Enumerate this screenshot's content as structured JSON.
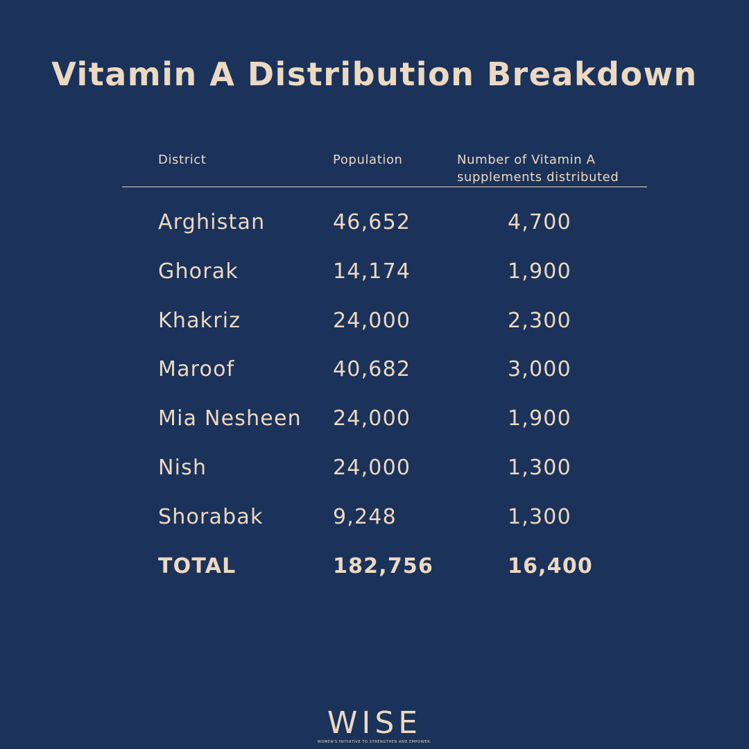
{
  "title": "Vitamin A Distribution Breakdown",
  "table": {
    "headers": {
      "district": "District",
      "population": "Population",
      "supplements_line1": "Number of Vitamin A",
      "supplements_line2": "supplements distributed"
    },
    "rows": [
      {
        "district": "Arghistan",
        "population": "46,652",
        "supplements": "4,700"
      },
      {
        "district": "Ghorak",
        "population": "14,174",
        "supplements": "1,900"
      },
      {
        "district": "Khakriz",
        "population": "24,000",
        "supplements": "2,300"
      },
      {
        "district": "Maroof",
        "population": "40,682",
        "supplements": "3,000"
      },
      {
        "district": "Mia Nesheen",
        "population": "24,000",
        "supplements": "1,900"
      },
      {
        "district": "Nish",
        "population": "24,000",
        "supplements": "1,300"
      },
      {
        "district": "Shorabak",
        "population": "9,248",
        "supplements": "1,300"
      }
    ],
    "total": {
      "district": "TOTAL",
      "population": "182,756",
      "supplements": "16,400"
    }
  },
  "logo": {
    "word": "WISE",
    "tagline": "WOMEN'S INITIATIVE TO STRENGTHEN AND EMPOWER."
  },
  "colors": {
    "background": "#1b325a",
    "text": "#ecd9c1"
  }
}
